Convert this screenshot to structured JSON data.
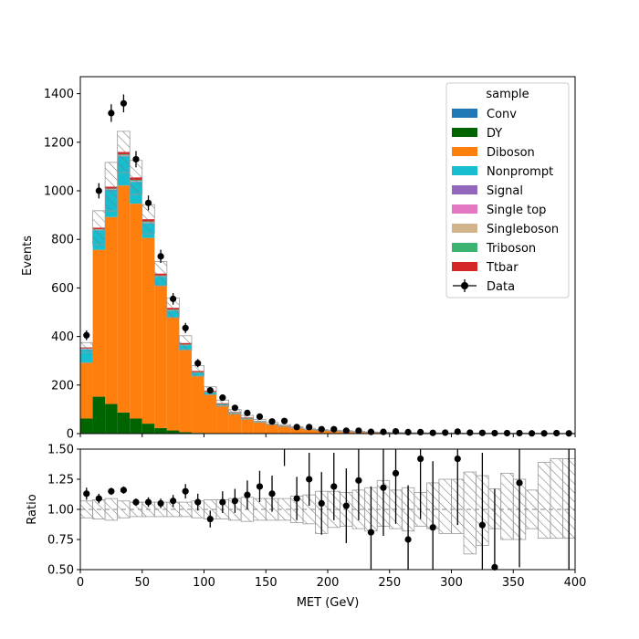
{
  "chart_data": [
    {
      "type": "bar",
      "stacked": true,
      "xlabel": "",
      "ylabel": "Events",
      "xlim": [
        0,
        400
      ],
      "ylim": [
        0,
        1470
      ],
      "bin_width": 10,
      "xticks": [
        0,
        50,
        100,
        150,
        200,
        250,
        300,
        350,
        400
      ],
      "yticks": [
        0,
        200,
        400,
        600,
        800,
        1000,
        1200,
        1400
      ],
      "legend": {
        "title": "sample",
        "placement": "top-right",
        "entries": [
          "Conv",
          "DY",
          "Diboson",
          "Nonprompt",
          "Signal",
          "Single top",
          "Singleboson",
          "Triboson",
          "Ttbar",
          "Data"
        ]
      },
      "series": [
        {
          "name": "Conv",
          "color": "#1f77b4",
          "values": [
            2,
            2,
            2,
            2,
            2,
            1,
            1,
            1,
            1,
            0,
            0,
            0,
            0,
            0,
            0,
            0,
            0,
            0,
            0,
            0,
            0,
            0,
            0,
            0,
            0,
            0,
            0,
            0,
            0,
            0,
            0,
            0,
            0,
            0,
            0,
            0,
            0,
            0,
            0,
            0
          ]
        },
        {
          "name": "DY",
          "color": "#006400",
          "values": [
            60,
            150,
            120,
            85,
            60,
            40,
            22,
            12,
            5,
            3,
            2,
            1,
            1,
            0,
            0,
            0,
            0,
            0,
            0,
            0,
            0,
            0,
            0,
            0,
            0,
            0,
            0,
            0,
            0,
            0,
            0,
            0,
            0,
            0,
            0,
            0,
            0,
            0,
            0,
            0
          ]
        },
        {
          "name": "Diboson",
          "color": "#ff7f0e",
          "values": [
            230,
            605,
            770,
            935,
            885,
            765,
            585,
            465,
            340,
            235,
            160,
            115,
            82,
            62,
            48,
            38,
            30,
            23,
            18,
            14,
            12,
            10,
            8,
            6,
            5,
            4,
            3,
            3,
            2,
            2,
            2,
            1,
            1,
            1,
            1,
            1,
            1,
            0,
            0,
            0
          ]
        },
        {
          "name": "Nonprompt",
          "color": "#17becf",
          "values": [
            55,
            80,
            110,
            120,
            90,
            60,
            38,
            28,
            18,
            12,
            8,
            5,
            3,
            2,
            2,
            1,
            1,
            1,
            1,
            1,
            0,
            0,
            0,
            0,
            0,
            0,
            0,
            0,
            0,
            0,
            0,
            0,
            0,
            0,
            0,
            0,
            0,
            0,
            0,
            0
          ]
        },
        {
          "name": "Signal",
          "color": "#9467bd",
          "values": [
            1,
            1,
            2,
            2,
            2,
            2,
            1,
            1,
            1,
            1,
            0,
            0,
            0,
            0,
            0,
            0,
            0,
            0,
            0,
            0,
            0,
            0,
            0,
            0,
            0,
            0,
            0,
            0,
            0,
            0,
            0,
            0,
            0,
            0,
            0,
            0,
            0,
            0,
            0,
            0
          ]
        },
        {
          "name": "Single top",
          "color": "#e377c2",
          "values": [
            1,
            1,
            1,
            1,
            1,
            1,
            1,
            1,
            0,
            0,
            0,
            0,
            0,
            0,
            0,
            0,
            0,
            0,
            0,
            0,
            0,
            0,
            0,
            0,
            0,
            0,
            0,
            0,
            0,
            0,
            0,
            0,
            0,
            0,
            0,
            0,
            0,
            0,
            0,
            0
          ]
        },
        {
          "name": "Singleboson",
          "color": "#d2b48c",
          "values": [
            1,
            1,
            1,
            1,
            1,
            1,
            0,
            0,
            0,
            0,
            0,
            0,
            0,
            0,
            0,
            0,
            0,
            0,
            0,
            0,
            0,
            0,
            0,
            0,
            0,
            0,
            0,
            0,
            0,
            0,
            0,
            0,
            0,
            0,
            0,
            0,
            0,
            0,
            0,
            0
          ]
        },
        {
          "name": "Triboson",
          "color": "#3cb371",
          "values": [
            1,
            2,
            3,
            4,
            4,
            4,
            3,
            3,
            2,
            2,
            2,
            1,
            1,
            1,
            1,
            1,
            1,
            0,
            0,
            0,
            0,
            0,
            0,
            0,
            0,
            0,
            0,
            0,
            0,
            0,
            0,
            0,
            0,
            0,
            0,
            0,
            0,
            0,
            0,
            0
          ]
        },
        {
          "name": "Ttbar",
          "color": "#d62728",
          "values": [
            4,
            6,
            8,
            10,
            10,
            9,
            8,
            7,
            6,
            5,
            4,
            3,
            2,
            2,
            1,
            1,
            1,
            1,
            0,
            0,
            0,
            0,
            0,
            0,
            0,
            0,
            0,
            0,
            0,
            0,
            0,
            0,
            0,
            0,
            0,
            0,
            0,
            0,
            0,
            0
          ]
        }
      ],
      "uncertainty": [
        20,
        70,
        100,
        85,
        70,
        60,
        50,
        40,
        30,
        22,
        17,
        13,
        10,
        8,
        6,
        5,
        4,
        3,
        3,
        2,
        2,
        2,
        2,
        1,
        1,
        1,
        1,
        1,
        1,
        1,
        1,
        1,
        1,
        1,
        1,
        1,
        1,
        1,
        1,
        1
      ],
      "data": {
        "name": "Data",
        "x": [
          5,
          15,
          25,
          35,
          45,
          55,
          65,
          75,
          85,
          95,
          105,
          115,
          125,
          135,
          145,
          155,
          165,
          175,
          185,
          195,
          205,
          215,
          225,
          235,
          245,
          255,
          265,
          275,
          285,
          295,
          305,
          315,
          325,
          335,
          345,
          355,
          365,
          375,
          385,
          395
        ],
        "y": [
          405,
          1000,
          1320,
          1360,
          1130,
          950,
          730,
          555,
          435,
          290,
          178,
          148,
          106,
          85,
          70,
          50,
          52,
          27,
          27,
          18,
          18,
          12,
          12,
          7,
          7,
          9,
          6,
          6,
          3,
          4,
          8,
          4,
          3,
          2,
          2,
          2,
          1,
          1,
          2,
          1
        ]
      }
    },
    {
      "type": "scatter",
      "xlabel": "MET (GeV)",
      "ylabel": "Ratio",
      "xlim": [
        0,
        400
      ],
      "ylim": [
        0.5,
        1.5
      ],
      "xticks": [
        0,
        50,
        100,
        150,
        200,
        250,
        300,
        350,
        400
      ],
      "yticks": [
        0.5,
        0.75,
        1.0,
        1.25,
        1.5
      ],
      "ytick_labels": [
        "0.50",
        "0.75",
        "1.00",
        "1.25",
        "1.50"
      ],
      "reference_line": 1.0,
      "band_low": [
        0.93,
        0.92,
        0.91,
        0.93,
        0.94,
        0.94,
        0.94,
        0.94,
        0.94,
        0.93,
        0.92,
        0.92,
        0.91,
        0.9,
        0.91,
        0.91,
        0.91,
        0.89,
        0.88,
        0.8,
        0.85,
        0.86,
        0.84,
        0.82,
        0.86,
        0.84,
        0.82,
        0.86,
        0.84,
        0.8,
        0.8,
        0.63,
        0.7,
        0.84,
        0.75,
        0.75,
        0.84,
        0.76,
        0.76,
        0.76
      ],
      "band_high": [
        1.07,
        1.08,
        1.09,
        1.07,
        1.06,
        1.06,
        1.06,
        1.06,
        1.06,
        1.07,
        1.08,
        1.08,
        1.09,
        1.1,
        1.09,
        1.09,
        1.09,
        1.11,
        1.12,
        1.15,
        1.15,
        1.14,
        1.16,
        1.18,
        1.24,
        1.16,
        1.18,
        1.14,
        1.22,
        1.25,
        1.25,
        1.31,
        1.28,
        1.17,
        1.3,
        1.25,
        1.16,
        1.39,
        1.42,
        1.42
      ],
      "points": {
        "x": [
          5,
          15,
          25,
          35,
          45,
          55,
          65,
          75,
          85,
          95,
          105,
          115,
          125,
          135,
          145,
          155,
          175,
          185,
          195,
          205,
          215,
          225,
          235,
          245,
          255,
          265,
          275,
          285,
          305,
          325,
          335,
          355
        ],
        "y": [
          1.13,
          1.09,
          1.15,
          1.16,
          1.06,
          1.06,
          1.05,
          1.07,
          1.15,
          1.06,
          0.92,
          1.06,
          1.07,
          1.12,
          1.19,
          1.13,
          1.09,
          1.25,
          1.05,
          1.19,
          1.03,
          1.24,
          0.81,
          1.18,
          1.3,
          0.75,
          1.42,
          0.85,
          1.42,
          0.87,
          0.52,
          1.22
        ],
        "err": [
          0.05,
          0.04,
          0.03,
          0.03,
          0.03,
          0.04,
          0.04,
          0.05,
          0.06,
          0.07,
          0.07,
          0.09,
          0.1,
          0.12,
          0.13,
          0.15,
          0.18,
          0.22,
          0.26,
          0.28,
          0.31,
          0.33,
          0.38,
          0.4,
          0.42,
          0.45,
          0.5,
          0.55,
          0.55,
          0.6,
          0.65,
          0.7
        ]
      }
    }
  ]
}
